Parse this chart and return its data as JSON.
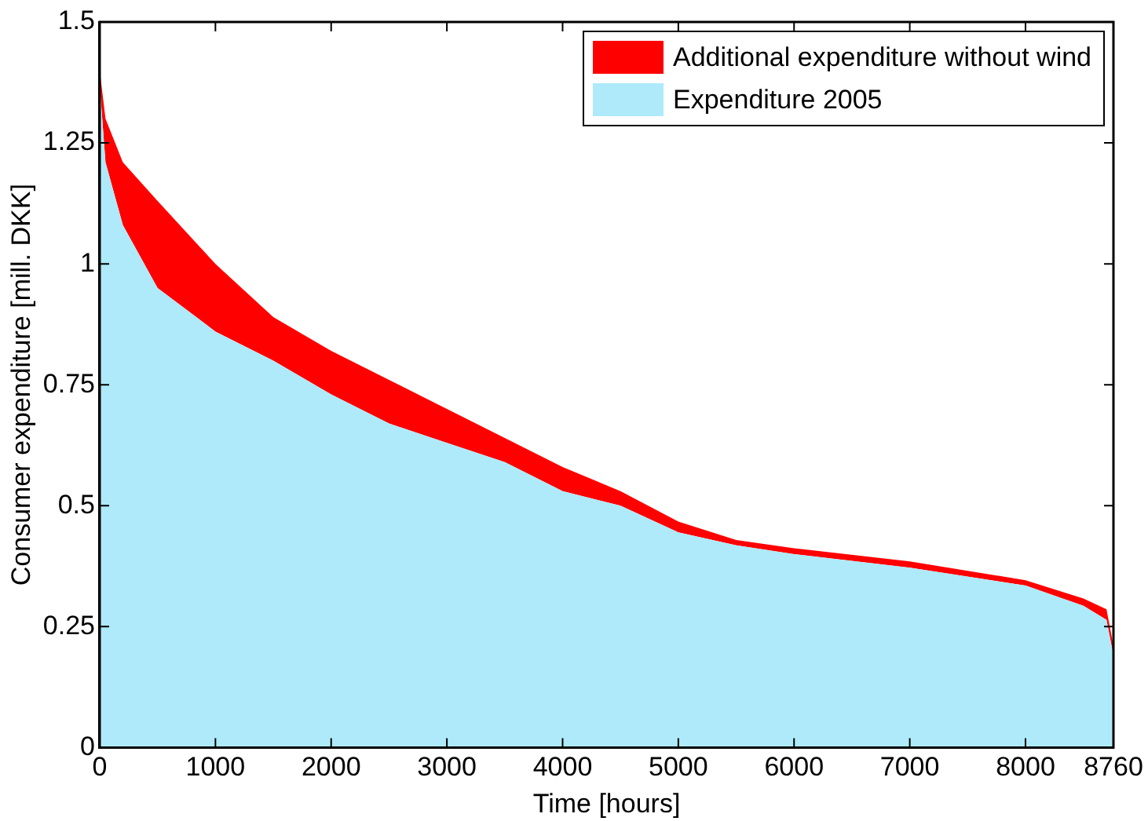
{
  "chart_data": {
    "type": "area",
    "stacked": true,
    "xlabel": "Time [hours]",
    "ylabel": "Consumer expenditure [mill. DKK]",
    "x": [
      0,
      50,
      200,
      500,
      1000,
      1500,
      2000,
      2500,
      3000,
      3500,
      4000,
      4500,
      5000,
      5500,
      6000,
      7000,
      8000,
      8500,
      8700,
      8760
    ],
    "series": [
      {
        "name": "Expenditure 2005",
        "color": "#aeeafa",
        "values": [
          1.37,
          1.21,
          1.08,
          0.95,
          0.86,
          0.8,
          0.73,
          0.67,
          0.63,
          0.59,
          0.53,
          0.5,
          0.445,
          0.418,
          0.4,
          0.372,
          0.335,
          0.293,
          0.264,
          0.19
        ]
      },
      {
        "name": "Additional expenditure without wind",
        "color": "#ff0000",
        "values": [
          0.03,
          0.09,
          0.13,
          0.18,
          0.14,
          0.09,
          0.09,
          0.09,
          0.07,
          0.05,
          0.05,
          0.03,
          0.022,
          0.011,
          0.012,
          0.013,
          0.011,
          0.015,
          0.022,
          0.02
        ]
      }
    ],
    "xlim": [
      0,
      8760
    ],
    "xticks": [
      0,
      1000,
      2000,
      3000,
      4000,
      5000,
      6000,
      7000,
      8000,
      8760
    ],
    "ylim": [
      0,
      1.5
    ],
    "yticks": [
      0,
      0.25,
      0.5,
      0.75,
      1,
      1.25,
      1.5
    ],
    "grid": false,
    "legend": "top right"
  }
}
